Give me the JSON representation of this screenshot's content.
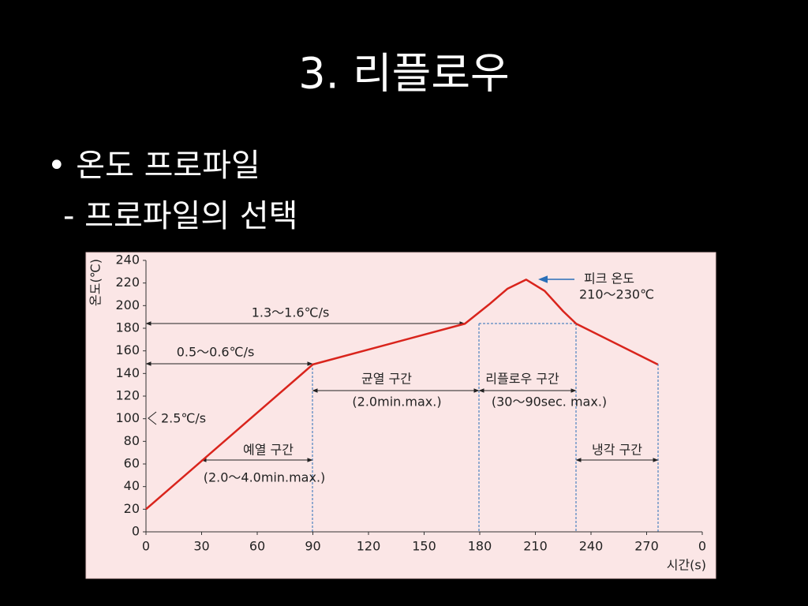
{
  "slide": {
    "title": "3. 리플로우",
    "bullets": [
      "• 온도 프로파일",
      "- 프로파일의 선택"
    ]
  },
  "chart_data": {
    "type": "line",
    "y_label": "온도(℃)",
    "x_label": "시간(s)",
    "x": [
      0,
      90,
      172,
      185,
      195,
      205,
      215,
      225,
      232,
      276
    ],
    "values": [
      20,
      148,
      184,
      201,
      215,
      223,
      213,
      195,
      184,
      148
    ],
    "color": "#d9241c",
    "xlim": [
      0,
      300
    ],
    "xticks": [
      0,
      30,
      60,
      90,
      120,
      150,
      180,
      210,
      240,
      270,
      {
        "value": 300,
        "label": "0"
      }
    ],
    "ylim": [
      0,
      240
    ],
    "yticks": [
      0,
      20,
      40,
      60,
      80,
      100,
      120,
      140,
      160,
      180,
      200,
      220,
      240
    ],
    "grid": false,
    "annotations": [
      "1.3～1.6℃/s",
      "0.5～0.6℃/s",
      "2.5℃/s",
      "예열 구간",
      "(2.0～4.0min.max.)",
      "균열 구간",
      "(2.0min.max.)",
      "리플로우 구간",
      "(30～90sec. max.)",
      "냉각 구간",
      "피크 온도",
      "210～230℃"
    ]
  }
}
